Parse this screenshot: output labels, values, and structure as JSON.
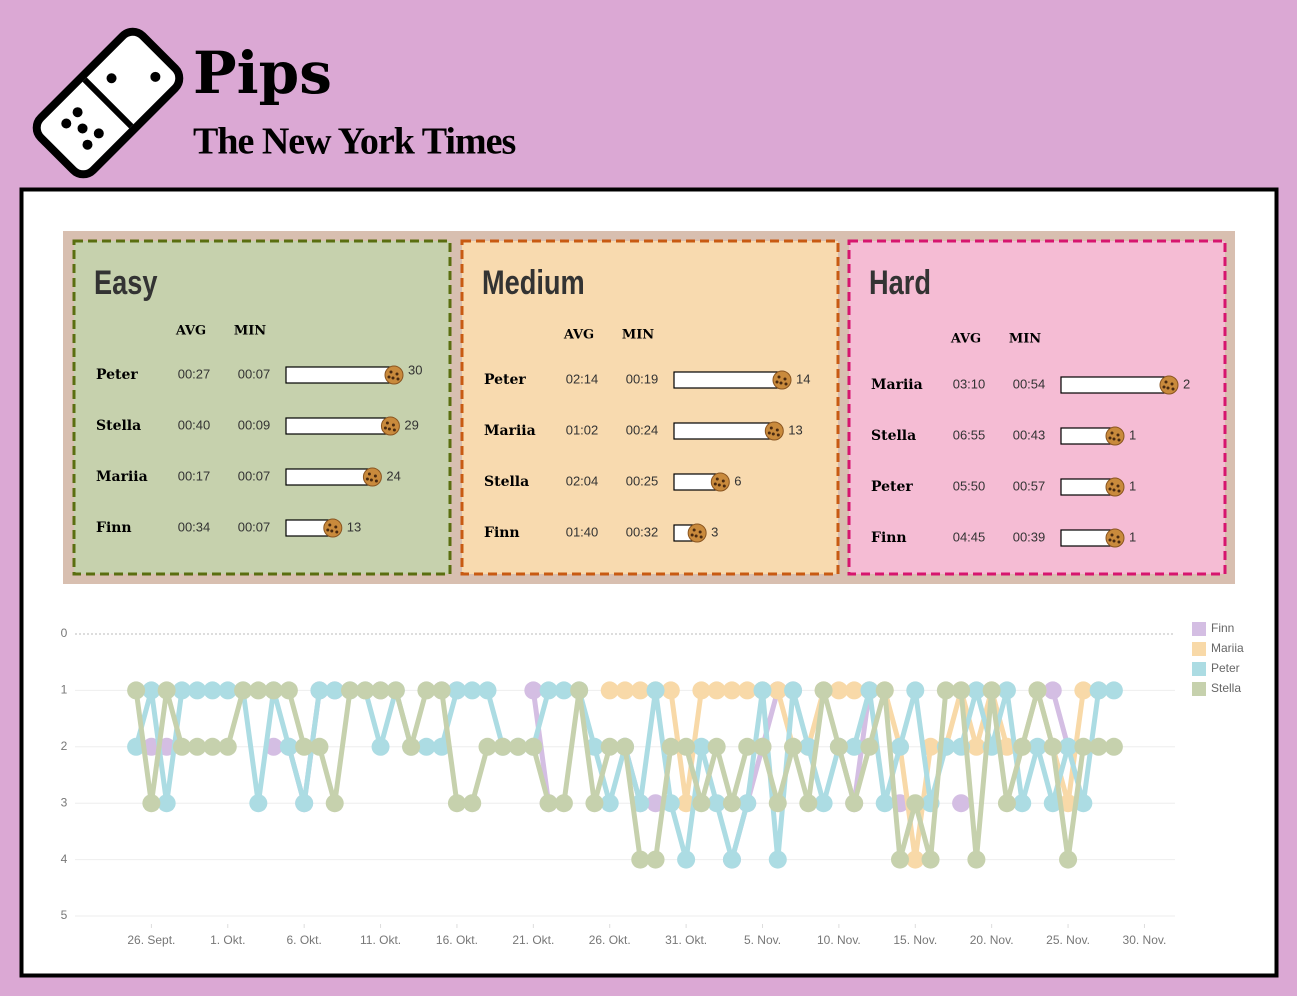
{
  "header": {
    "title": "Pips",
    "subtitle": "The New York Times"
  },
  "panels": [
    {
      "title": "Easy",
      "headers": [
        "AVG",
        "MIN"
      ],
      "color": "#c6d1ad",
      "border_color": "#5a6e10",
      "rows": [
        {
          "name": "Peter",
          "avg": "00:27",
          "min": "00:07",
          "count": 30
        },
        {
          "name": "Stella",
          "avg": "00:40",
          "min": "00:09",
          "count": 29
        },
        {
          "name": "Mariia",
          "avg": "00:17",
          "min": "00:07",
          "count": 24
        },
        {
          "name": "Finn",
          "avg": "00:34",
          "min": "00:07",
          "count": 13
        }
      ]
    },
    {
      "title": "Medium",
      "headers": [
        "AVG",
        "MIN"
      ],
      "color": "#f8daaf",
      "border_color": "#c85a12",
      "rows": [
        {
          "name": "Peter",
          "avg": "02:14",
          "min": "00:19",
          "count": 14
        },
        {
          "name": "Mariia",
          "avg": "01:02",
          "min": "00:24",
          "count": 13
        },
        {
          "name": "Stella",
          "avg": "02:04",
          "min": "00:25",
          "count": 6
        },
        {
          "name": "Finn",
          "avg": "01:40",
          "min": "00:32",
          "count": 3
        }
      ]
    },
    {
      "title": "Hard",
      "headers": [
        "AVG",
        "MIN"
      ],
      "color": "#f5bcd4",
      "border_color": "#d6156e",
      "rows": [
        {
          "name": "Mariia",
          "avg": "03:10",
          "min": "00:54",
          "count": 2
        },
        {
          "name": "Stella",
          "avg": "06:55",
          "min": "00:43",
          "count": 1
        },
        {
          "name": "Peter",
          "avg": "05:50",
          "min": "00:57",
          "count": 1
        },
        {
          "name": "Finn",
          "avg": "04:45",
          "min": "00:39",
          "count": 1
        }
      ]
    }
  ],
  "chart_data": {
    "type": "line",
    "legend": "right",
    "grid": true,
    "x": [
      "09-25",
      "09-26",
      "09-27",
      "09-28",
      "09-29",
      "09-30",
      "10-01",
      "10-02",
      "10-03",
      "10-04",
      "10-05",
      "10-06",
      "10-07",
      "10-08",
      "10-09",
      "10-10",
      "10-11",
      "10-12",
      "10-13",
      "10-14",
      "10-15",
      "10-16",
      "10-17",
      "10-18",
      "10-19",
      "10-20",
      "10-21",
      "10-22",
      "10-23",
      "10-24",
      "10-25",
      "10-26",
      "10-27",
      "10-28",
      "10-29",
      "10-30",
      "10-31",
      "11-01",
      "11-02",
      "11-03",
      "11-04",
      "11-05",
      "11-06",
      "11-07",
      "11-08",
      "11-09",
      "11-10",
      "11-11",
      "11-12",
      "11-13",
      "11-14",
      "11-15",
      "11-16",
      "11-17",
      "11-18",
      "11-19",
      "11-20",
      "11-21",
      "11-22",
      "11-23",
      "11-24",
      "11-25",
      "11-26",
      "11-27",
      "11-28"
    ],
    "xlim": [
      "09-21",
      "12-02"
    ],
    "xticks": [
      {
        "value": "09-26",
        "label": "26. Sept."
      },
      {
        "value": "10-01",
        "label": "1. Okt."
      },
      {
        "value": "10-06",
        "label": "6. Okt."
      },
      {
        "value": "10-11",
        "label": "11. Okt."
      },
      {
        "value": "10-16",
        "label": "16. Okt."
      },
      {
        "value": "10-21",
        "label": "21. Okt."
      },
      {
        "value": "10-26",
        "label": "26. Okt."
      },
      {
        "value": "10-31",
        "label": "31. Okt."
      },
      {
        "value": "11-05",
        "label": "5. Nov."
      },
      {
        "value": "11-10",
        "label": "10. Nov."
      },
      {
        "value": "11-15",
        "label": "15. Nov."
      },
      {
        "value": "11-20",
        "label": "20. Nov."
      },
      {
        "value": "11-25",
        "label": "25. Nov."
      },
      {
        "value": "11-30",
        "label": "30. Nov."
      }
    ],
    "ylim": [
      0,
      5
    ],
    "yticks": [
      0,
      1,
      2,
      3,
      4,
      5
    ],
    "y_inverted": true,
    "series": [
      {
        "name": "Finn",
        "color": "#d4bee3",
        "values": [
          null,
          2,
          2,
          null,
          null,
          null,
          null,
          null,
          null,
          2,
          2,
          3,
          1,
          1,
          null,
          null,
          1,
          null,
          null,
          null,
          1,
          1,
          null,
          null,
          null,
          null,
          1,
          3,
          null,
          null,
          null,
          null,
          2,
          3,
          3,
          null,
          null,
          null,
          null,
          4,
          3,
          2,
          1,
          1,
          null,
          null,
          2,
          3,
          1,
          null,
          3,
          null,
          null,
          null,
          3,
          null,
          null,
          null,
          null,
          null,
          1,
          2,
          null,
          null,
          null
        ]
      },
      {
        "name": "Mariia",
        "color": "#f8d9a8",
        "values": [
          null,
          null,
          null,
          null,
          null,
          null,
          null,
          null,
          null,
          null,
          null,
          null,
          null,
          null,
          null,
          null,
          null,
          null,
          null,
          null,
          null,
          null,
          null,
          null,
          null,
          null,
          null,
          null,
          null,
          null,
          null,
          1,
          1,
          1,
          1,
          1,
          3,
          1,
          1,
          1,
          1,
          1,
          1,
          2,
          2,
          1,
          1,
          1,
          1,
          1,
          2,
          4,
          2,
          2,
          1,
          2,
          1,
          2,
          2,
          1,
          2,
          3,
          1,
          1,
          null
        ]
      },
      {
        "name": "Peter",
        "color": "#acdce3",
        "values": [
          2,
          1,
          3,
          1,
          1,
          1,
          1,
          1,
          3,
          1,
          2,
          3,
          1,
          1,
          1,
          1,
          2,
          1,
          2,
          2,
          2,
          1,
          1,
          1,
          2,
          2,
          2,
          1,
          1,
          1,
          2,
          3,
          2,
          3,
          1,
          3,
          4,
          2,
          3,
          4,
          3,
          1,
          4,
          1,
          2,
          3,
          2,
          2,
          1,
          3,
          2,
          1,
          3,
          2,
          2,
          1,
          2,
          1,
          3,
          2,
          3,
          2,
          3,
          1,
          1
        ]
      },
      {
        "name": "Stella",
        "color": "#c6d1ad",
        "values": [
          1,
          3,
          1,
          2,
          2,
          2,
          2,
          1,
          1,
          1,
          1,
          2,
          2,
          3,
          1,
          1,
          1,
          1,
          2,
          1,
          1,
          3,
          3,
          2,
          2,
          2,
          2,
          3,
          3,
          1,
          3,
          2,
          2,
          4,
          4,
          2,
          2,
          3,
          2,
          3,
          2,
          2,
          3,
          2,
          3,
          1,
          2,
          3,
          2,
          1,
          4,
          3,
          4,
          1,
          1,
          4,
          1,
          3,
          2,
          1,
          2,
          4,
          2,
          2,
          2
        ]
      }
    ]
  }
}
